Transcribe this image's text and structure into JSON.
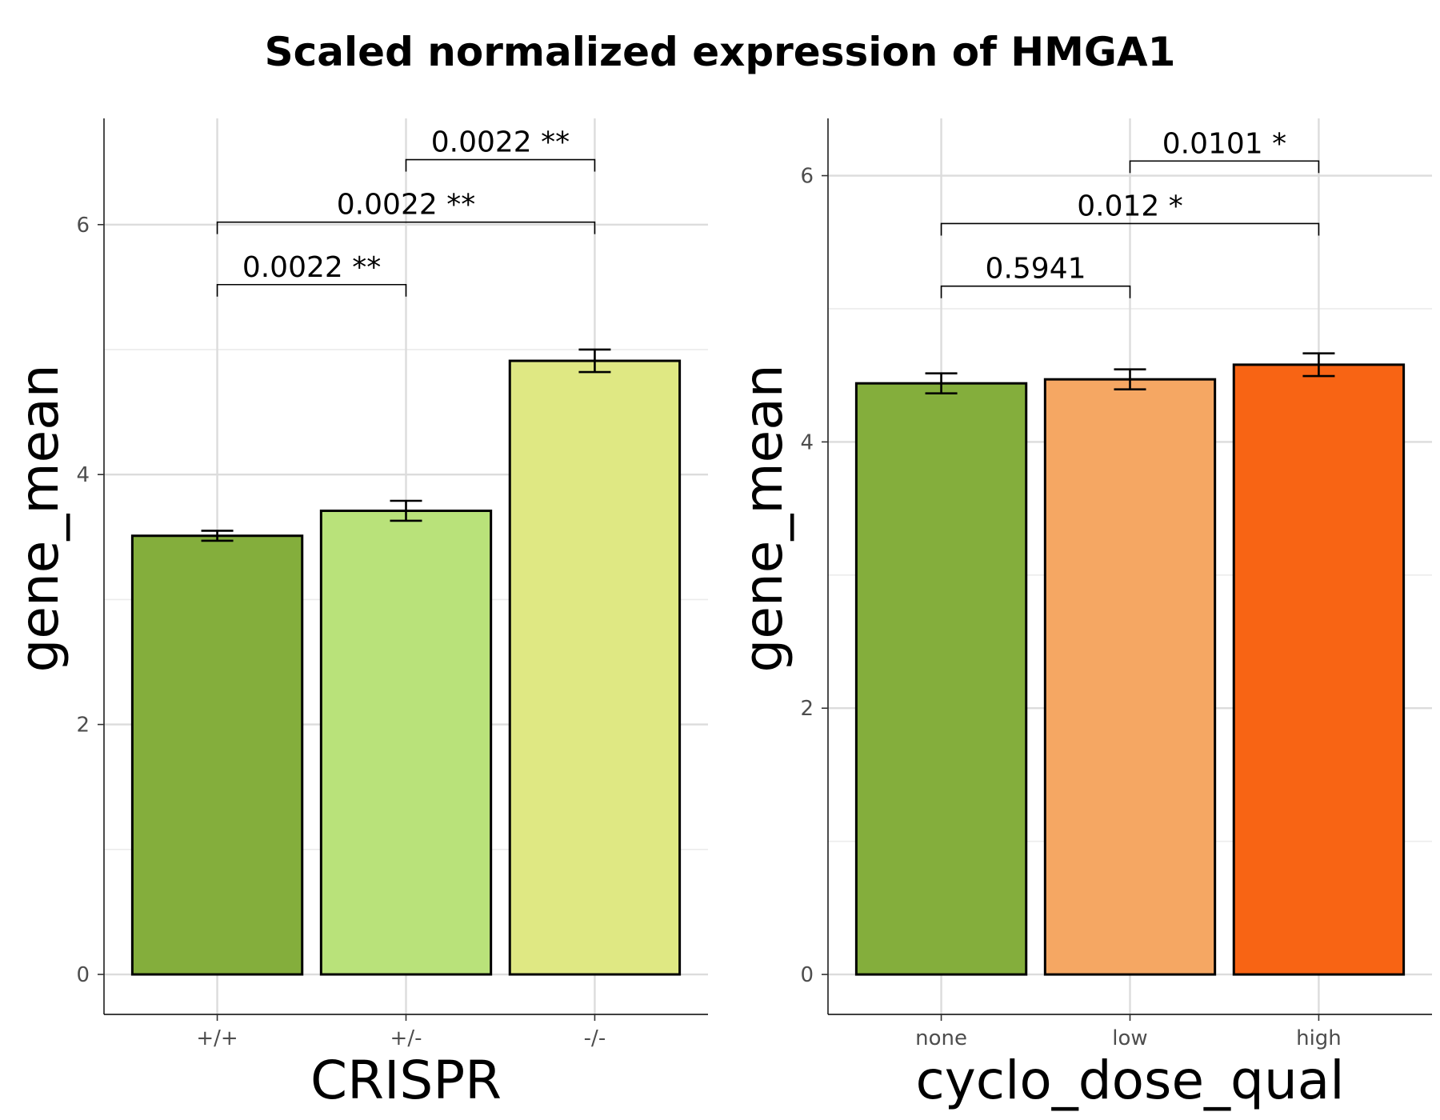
{
  "title": "Scaled normalized expression of HMGA1",
  "chart_data": [
    {
      "type": "bar",
      "xlabel": "CRISPR",
      "ylabel": "gene_mean",
      "ylim": [
        -0.32,
        6.85
      ],
      "yticks": [
        0,
        2,
        4,
        6
      ],
      "grid": true,
      "categories": [
        "+/+",
        "+/-",
        "-/-"
      ],
      "values": [
        3.51,
        3.71,
        4.91
      ],
      "error": [
        0.04,
        0.08,
        0.09
      ],
      "colors": [
        "#84AE3C",
        "#B9E27A",
        "#DFE883"
      ],
      "comparisons": [
        {
          "from": 0,
          "to": 1,
          "label": "0.0022 **",
          "y": 5.52
        },
        {
          "from": 0,
          "to": 2,
          "label": "0.0022 **",
          "y": 6.02
        },
        {
          "from": 1,
          "to": 2,
          "label": "0.0022 **",
          "y": 6.52
        }
      ]
    },
    {
      "type": "bar",
      "xlabel": "cyclo_dose_qual",
      "ylabel": "gene_mean",
      "ylim": [
        -0.3,
        6.43
      ],
      "yticks": [
        0,
        2,
        4,
        6
      ],
      "grid": true,
      "categories": [
        "none",
        "low",
        "high"
      ],
      "values": [
        4.44,
        4.47,
        4.58
      ],
      "error": [
        0.075,
        0.075,
        0.085
      ],
      "colors": [
        "#84AE3C",
        "#F5A763",
        "#F86414"
      ],
      "comparisons": [
        {
          "from": 0,
          "to": 1,
          "label": "0.5941",
          "y": 5.17
        },
        {
          "from": 0,
          "to": 2,
          "label": "0.012 *",
          "y": 5.64
        },
        {
          "from": 1,
          "to": 2,
          "label": "0.0101 *",
          "y": 6.11
        }
      ]
    }
  ]
}
